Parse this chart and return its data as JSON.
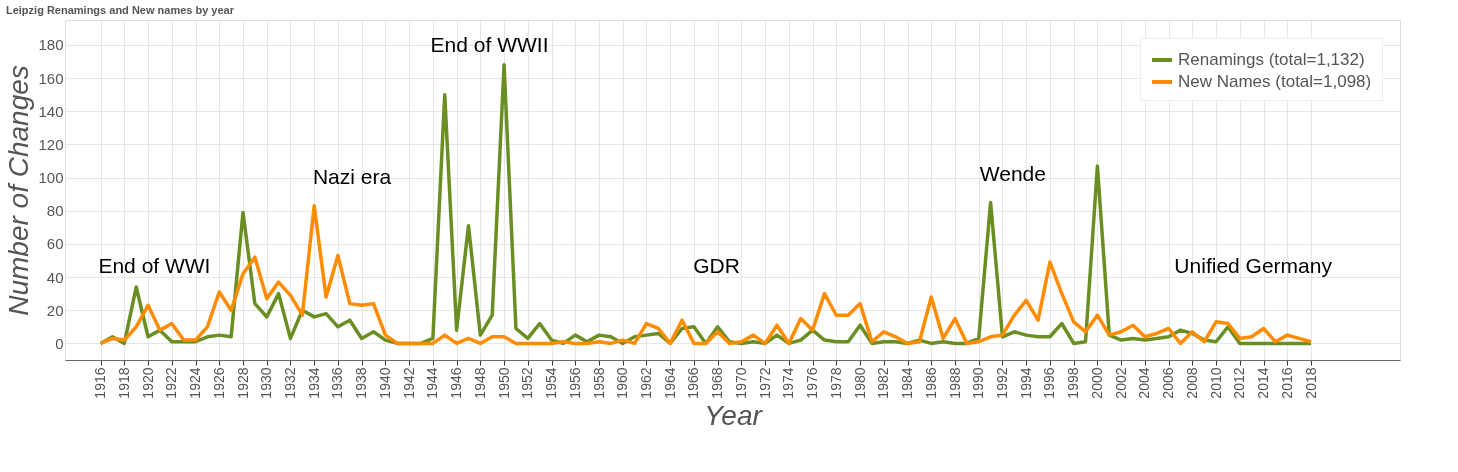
{
  "chart_data": {
    "type": "line",
    "title": "Leipzig Renamings and New names by year",
    "xlabel": "Year",
    "ylabel": "Number of Changes",
    "x": [
      1916,
      1917,
      1918,
      1919,
      1920,
      1921,
      1922,
      1923,
      1924,
      1925,
      1926,
      1927,
      1928,
      1929,
      1930,
      1931,
      1932,
      1933,
      1934,
      1935,
      1936,
      1937,
      1938,
      1939,
      1940,
      1941,
      1942,
      1943,
      1944,
      1945,
      1946,
      1947,
      1948,
      1949,
      1950,
      1951,
      1952,
      1953,
      1954,
      1955,
      1956,
      1957,
      1958,
      1959,
      1960,
      1961,
      1962,
      1963,
      1964,
      1965,
      1966,
      1967,
      1968,
      1969,
      1970,
      1971,
      1972,
      1973,
      1974,
      1975,
      1976,
      1977,
      1978,
      1979,
      1980,
      1981,
      1982,
      1983,
      1984,
      1985,
      1986,
      1987,
      1988,
      1989,
      1990,
      1991,
      1992,
      1993,
      1994,
      1995,
      1996,
      1997,
      1998,
      1999,
      2000,
      2001,
      2002,
      2003,
      2004,
      2005,
      2006,
      2007,
      2008,
      2009,
      2010,
      2011,
      2012,
      2013,
      2014,
      2015,
      2016,
      2017,
      2018
    ],
    "series": [
      {
        "name": "Renamings (total=1,132)",
        "color": "#6b8e23",
        "values": [
          0,
          4,
          0,
          34,
          4,
          8,
          1,
          1,
          1,
          4,
          5,
          4,
          79,
          24,
          16,
          30,
          3,
          20,
          16,
          18,
          10,
          14,
          3,
          7,
          2,
          0,
          0,
          0,
          3,
          150,
          8,
          71,
          5,
          17,
          168,
          9,
          3,
          12,
          2,
          0,
          5,
          1,
          5,
          4,
          0,
          4,
          5,
          6,
          0,
          9,
          10,
          0,
          10,
          1,
          0,
          1,
          0,
          5,
          0,
          2,
          8,
          2,
          1,
          1,
          11,
          0,
          1,
          1,
          0,
          2,
          0,
          1,
          0,
          0,
          3,
          85,
          4,
          7,
          5,
          4,
          4,
          12,
          0,
          1,
          107,
          5,
          2,
          3,
          2,
          3,
          4,
          8,
          6,
          2,
          1,
          10,
          0,
          0,
          0,
          0,
          0,
          0,
          0
        ]
      },
      {
        "name": "New Names (total=1,098)",
        "color": "#ff8c00",
        "values": [
          0,
          3,
          2,
          10,
          23,
          8,
          12,
          2,
          2,
          10,
          31,
          20,
          42,
          52,
          27,
          37,
          29,
          17,
          83,
          28,
          53,
          24,
          23,
          24,
          5,
          0,
          0,
          0,
          0,
          5,
          0,
          3,
          0,
          4,
          4,
          0,
          0,
          0,
          0,
          1,
          0,
          0,
          1,
          0,
          2,
          0,
          12,
          9,
          0,
          14,
          0,
          0,
          7,
          0,
          1,
          5,
          0,
          11,
          0,
          15,
          8,
          30,
          17,
          17,
          24,
          1,
          7,
          4,
          0,
          1,
          28,
          3,
          15,
          0,
          1,
          4,
          5,
          17,
          26,
          14,
          49,
          30,
          13,
          7,
          17,
          5,
          7,
          11,
          4,
          6,
          9,
          0,
          7,
          1,
          13,
          12,
          3,
          4,
          9,
          1,
          5,
          3,
          1
        ]
      }
    ],
    "xlim": [
      1913,
      2025.5
    ],
    "xticks": [
      1916,
      1918,
      1920,
      1922,
      1924,
      1926,
      1928,
      1930,
      1932,
      1934,
      1936,
      1938,
      1940,
      1942,
      1944,
      1946,
      1948,
      1950,
      1952,
      1954,
      1956,
      1958,
      1960,
      1962,
      1964,
      1966,
      1968,
      1970,
      1972,
      1974,
      1976,
      1978,
      1980,
      1982,
      1984,
      1986,
      1988,
      1990,
      1992,
      1994,
      1996,
      1998,
      2000,
      2002,
      2004,
      2006,
      2008,
      2010,
      2012,
      2014,
      2016,
      2018
    ],
    "ylim": [
      -10,
      195
    ],
    "yticks": [
      0,
      20,
      40,
      60,
      80,
      100,
      120,
      140,
      160,
      180
    ],
    "grid": true,
    "legend": "top right",
    "marker": "none",
    "line_style": "solid",
    "annotations": [
      "End of WWI",
      "Nazi era",
      "End of WWII",
      "GDR",
      "Wende",
      "Unified Germany"
    ]
  }
}
